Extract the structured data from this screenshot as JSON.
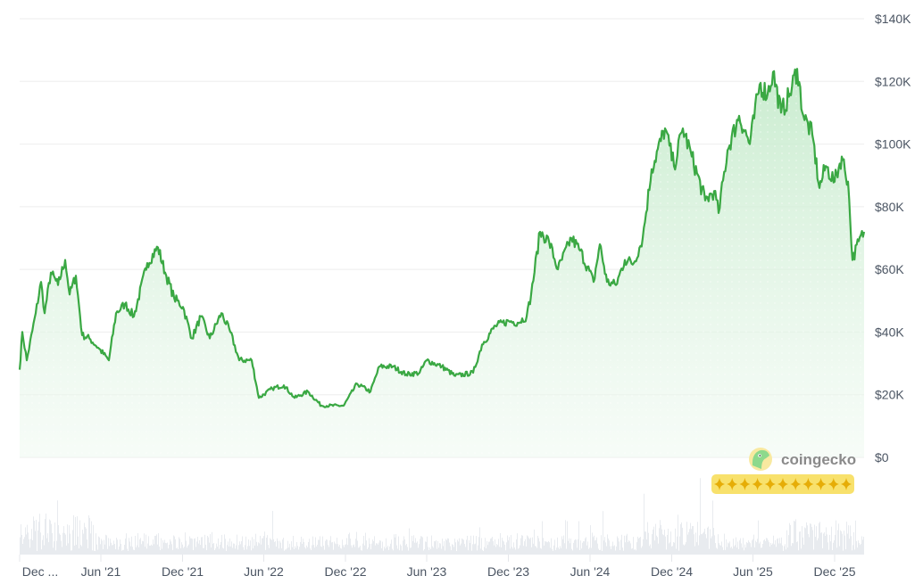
{
  "chart_data": {
    "type": "line",
    "title": "",
    "xlabel": "",
    "ylabel": "",
    "ylim": [
      0,
      140000
    ],
    "grid": true,
    "line_color": "#3aa843",
    "fill_color": "#d4f0d8",
    "volume_color": "#e8ebef",
    "y_ticks": [
      {
        "value": 0,
        "label": "$0"
      },
      {
        "value": 20000,
        "label": "$20K"
      },
      {
        "value": 40000,
        "label": "$40K"
      },
      {
        "value": 60000,
        "label": "$60K"
      },
      {
        "value": 80000,
        "label": "$80K"
      },
      {
        "value": 100000,
        "label": "$100K"
      },
      {
        "value": 120000,
        "label": "$120K"
      },
      {
        "value": 140000,
        "label": "$140K"
      }
    ],
    "x_ticks": [
      {
        "date": "2020-12-01",
        "label": "Dec ..."
      },
      {
        "date": "2021-06-01",
        "label": "Jun '21"
      },
      {
        "date": "2021-12-01",
        "label": "Dec '21"
      },
      {
        "date": "2022-06-01",
        "label": "Jun '22"
      },
      {
        "date": "2022-12-01",
        "label": "Dec '22"
      },
      {
        "date": "2023-06-01",
        "label": "Jun '23"
      },
      {
        "date": "2023-12-01",
        "label": "Dec '23"
      },
      {
        "date": "2024-06-01",
        "label": "Jun '24"
      },
      {
        "date": "2024-12-01",
        "label": "Dec '24"
      },
      {
        "date": "2025-06-01",
        "label": "Jun '25"
      },
      {
        "date": "2025-12-01",
        "label": "Dec '25"
      }
    ],
    "x": [
      "2020-12-01",
      "2020-12-07",
      "2020-12-17",
      "2021-01-06",
      "2021-01-18",
      "2021-01-26",
      "2021-02-09",
      "2021-02-25",
      "2021-03-13",
      "2021-03-23",
      "2021-04-06",
      "2021-04-20",
      "2021-05-06",
      "2021-05-26",
      "2021-06-19",
      "2021-07-05",
      "2021-07-25",
      "2021-08-14",
      "2021-09-13",
      "2021-10-07",
      "2021-10-23",
      "2021-11-12",
      "2021-12-02",
      "2021-12-22",
      "2022-01-11",
      "2022-01-31",
      "2022-02-26",
      "2022-03-18",
      "2022-04-07",
      "2022-05-05",
      "2022-05-21",
      "2022-06-20",
      "2022-07-16",
      "2022-08-09",
      "2022-09-08",
      "2022-10-08",
      "2022-11-27",
      "2022-12-27",
      "2023-01-26",
      "2023-02-15",
      "2023-03-17",
      "2023-04-16",
      "2023-05-16",
      "2023-06-01",
      "2023-07-05",
      "2023-08-04",
      "2023-09-13",
      "2023-10-03",
      "2023-11-02",
      "2023-12-02",
      "2023-12-22",
      "2024-01-11",
      "2024-01-21",
      "2024-02-10",
      "2024-03-01",
      "2024-03-21",
      "2024-04-20",
      "2024-05-10",
      "2024-06-09",
      "2024-06-23",
      "2024-07-09",
      "2024-07-29",
      "2024-08-18",
      "2024-09-07",
      "2024-09-27",
      "2024-10-17",
      "2024-11-16",
      "2024-12-06",
      "2024-12-26",
      "2025-01-15",
      "2025-02-14",
      "2025-03-06",
      "2025-03-16",
      "2025-04-05",
      "2025-05-01",
      "2025-05-25",
      "2025-06-16",
      "2025-07-04",
      "2025-07-16",
      "2025-08-03",
      "2025-08-23",
      "2025-09-08",
      "2025-09-22",
      "2025-10-12",
      "2025-10-28",
      "2025-11-11",
      "2025-12-01",
      "2025-12-17",
      "2025-12-31",
      "2026-01-10",
      "2026-01-24",
      "2026-02-05"
    ],
    "values": [
      28000,
      40000,
      31000,
      46000,
      56000,
      46000,
      59000,
      55000,
      63000,
      52000,
      58000,
      39000,
      38000,
      35000,
      31000,
      46000,
      49000,
      45000,
      62000,
      67000,
      59000,
      51000,
      48000,
      38000,
      45000,
      38000,
      46000,
      40000,
      31000,
      31000,
      19000,
      22000,
      23000,
      19000,
      21000,
      16500,
      16500,
      23500,
      21000,
      29000,
      29000,
      26500,
      27000,
      31000,
      29000,
      26000,
      27000,
      36000,
      42000,
      43500,
      43000,
      45000,
      52000,
      72000,
      69000,
      60000,
      70000,
      66000,
      56000,
      68000,
      56000,
      55000,
      63000,
      62000,
      70000,
      92000,
      105000,
      93000,
      105000,
      96000,
      82000,
      85000,
      78000,
      98000,
      109000,
      100000,
      119000,
      116000,
      123000,
      110000,
      116000,
      124000,
      109000,
      103000,
      86000,
      93000,
      88000,
      96000,
      88000,
      63000,
      69000,
      72000
    ]
  },
  "brand": {
    "name": "coingecko",
    "logo_icon": "gecko-icon",
    "accent": "#f8e16c"
  }
}
